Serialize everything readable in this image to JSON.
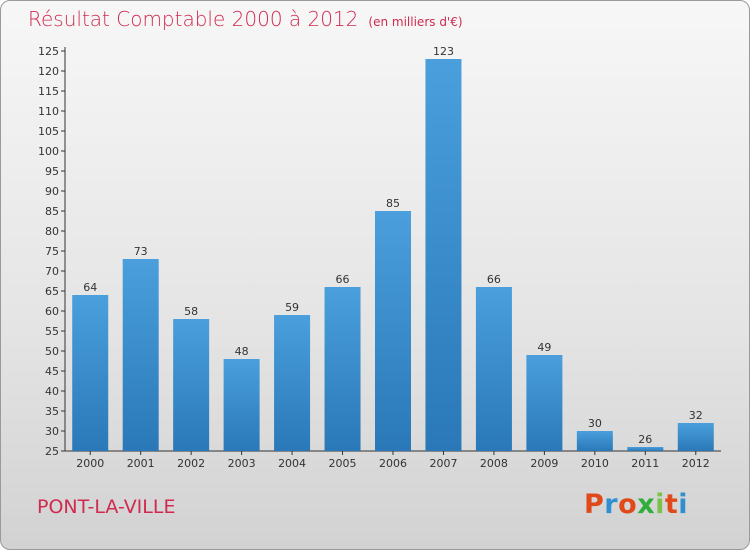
{
  "header": {
    "title": "Résultat Comptable 2000 à 2012",
    "subtitle": "(en milliers d'€)"
  },
  "footer": {
    "commune": "PONT-LA-VILLE",
    "logo": "Proxiti"
  },
  "colors": {
    "bar": "#4a9fdc",
    "bar_dark": "#2a78b8",
    "title": "#d02a50",
    "logo_letters": [
      "#e04a1a",
      "#2f8fd0",
      "#e04a1a",
      "#2fae3a",
      "#7cc24a",
      "#e04a1a",
      "#2f8fd0"
    ]
  },
  "chart_data": {
    "type": "bar",
    "title": "Résultat Comptable 2000 à 2012",
    "ylabel": "(en milliers d'€)",
    "xlabel": "",
    "categories": [
      "2000",
      "2001",
      "2002",
      "2003",
      "2004",
      "2005",
      "2006",
      "2007",
      "2008",
      "2009",
      "2010",
      "2011",
      "2012"
    ],
    "values": [
      64,
      73,
      58,
      48,
      59,
      66,
      85,
      123,
      66,
      49,
      30,
      26,
      32
    ],
    "ylim": [
      25,
      125
    ],
    "yticks": [
      25,
      30,
      35,
      40,
      45,
      50,
      55,
      60,
      65,
      70,
      75,
      80,
      85,
      90,
      95,
      100,
      105,
      110,
      115,
      120,
      125
    ],
    "grid": false,
    "data_labels": true
  }
}
